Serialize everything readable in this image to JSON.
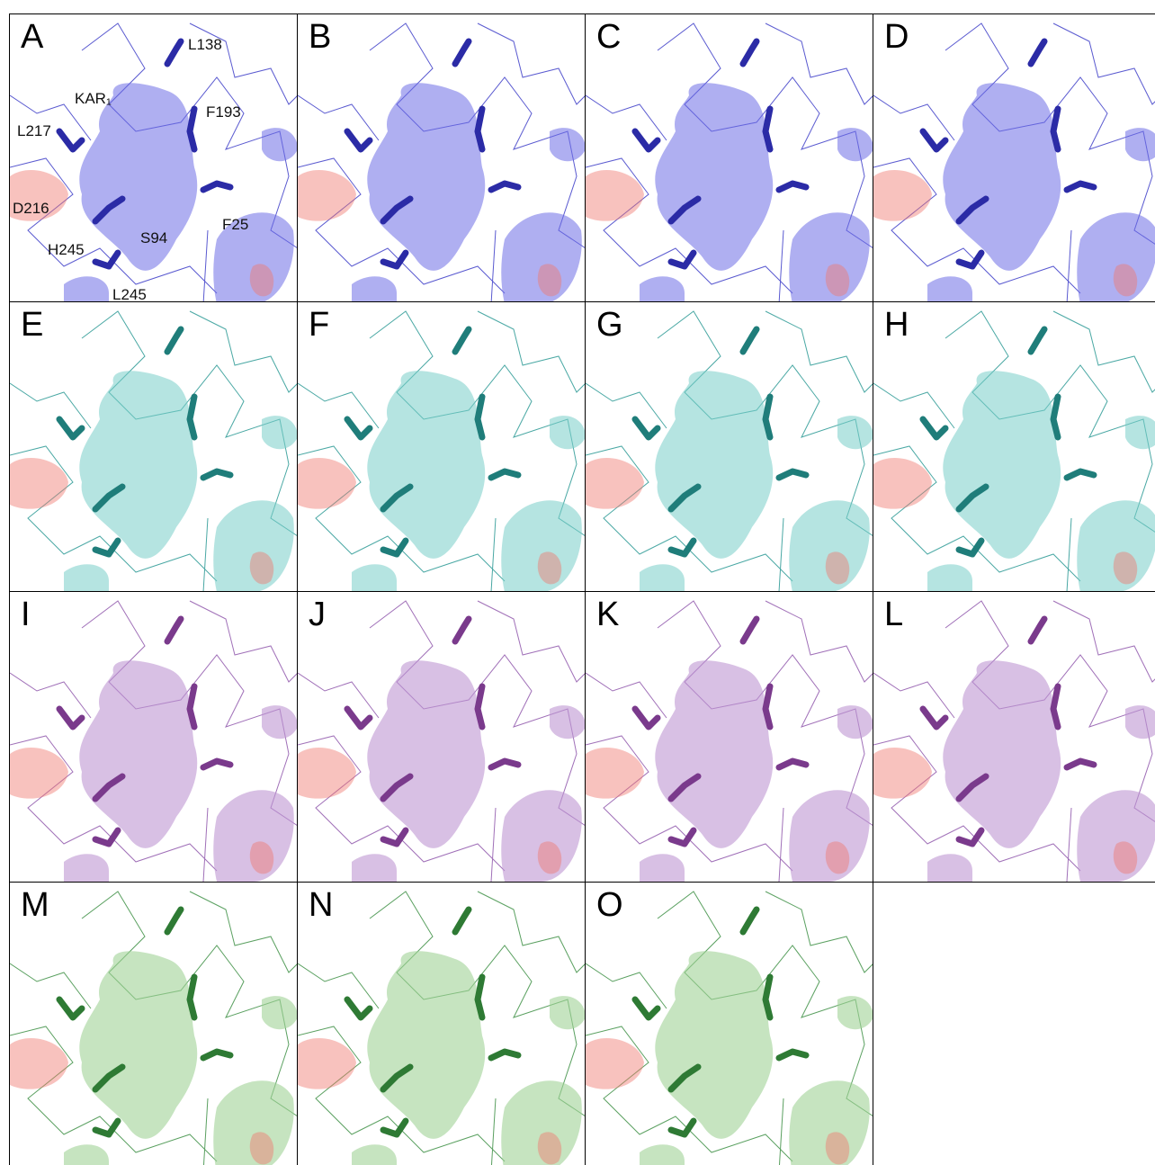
{
  "panels": [
    {
      "label": "A",
      "annotations": [
        "L138",
        "KAR₁",
        "F193",
        "L217",
        "D216",
        "S94",
        "F25",
        "H245",
        "L245"
      ]
    },
    {
      "label": "B"
    },
    {
      "label": "C"
    },
    {
      "label": "D"
    },
    {
      "label": "E"
    },
    {
      "label": "F"
    },
    {
      "label": "G"
    },
    {
      "label": "H"
    },
    {
      "label": "I"
    },
    {
      "label": "J"
    },
    {
      "label": "K"
    },
    {
      "label": "L"
    },
    {
      "label": "M"
    },
    {
      "label": "N"
    },
    {
      "label": "O"
    }
  ]
}
